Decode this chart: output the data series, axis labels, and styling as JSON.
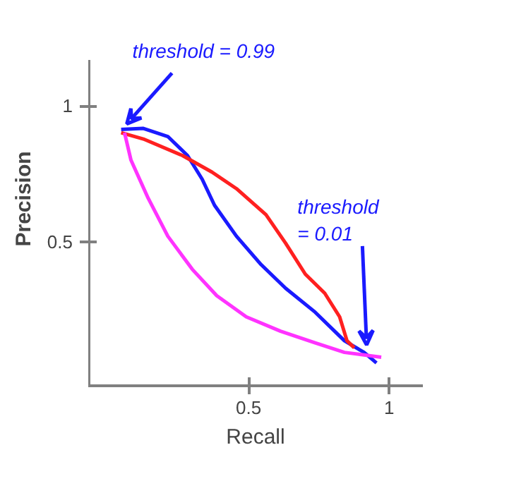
{
  "chart_data": {
    "type": "line",
    "xlabel": "Recall",
    "ylabel": "Precision",
    "xlim": [
      -0.07,
      1.12
    ],
    "ylim": [
      -0.03,
      1.17
    ],
    "xticks": [
      0.5,
      1
    ],
    "yticks": [
      0.5,
      1
    ],
    "grid": false,
    "series": [
      {
        "color": "#1a1aff",
        "x": [
          0.047,
          0.126,
          0.213,
          0.283,
          0.335,
          0.379,
          0.457,
          0.545,
          0.632,
          0.737,
          0.841,
          0.911,
          0.955
        ],
        "values": [
          0.914,
          0.918,
          0.888,
          0.818,
          0.731,
          0.635,
          0.521,
          0.416,
          0.329,
          0.241,
          0.136,
          0.093,
          0.054
        ]
      },
      {
        "color": "#ff2020",
        "x": [
          0.047,
          0.126,
          0.265,
          0.37,
          0.457,
          0.562,
          0.632,
          0.702,
          0.771,
          0.824,
          0.85,
          0.876
        ],
        "values": [
          0.902,
          0.879,
          0.818,
          0.757,
          0.696,
          0.6,
          0.495,
          0.381,
          0.311,
          0.224,
          0.136,
          0.11
        ]
      },
      {
        "color": "#ff33ff",
        "x": [
          0.059,
          0.082,
          0.143,
          0.213,
          0.3,
          0.387,
          0.492,
          0.614,
          0.737,
          0.841,
          0.972
        ],
        "values": [
          0.902,
          0.801,
          0.661,
          0.521,
          0.399,
          0.302,
          0.224,
          0.171,
          0.128,
          0.093,
          0.075
        ]
      }
    ],
    "annotations": [
      {
        "text": "threshold = 0.99",
        "x": 0.047,
        "y": 0.914
      },
      {
        "text": "threshold = 0.01",
        "x": 0.9,
        "y": 0.1
      }
    ]
  }
}
